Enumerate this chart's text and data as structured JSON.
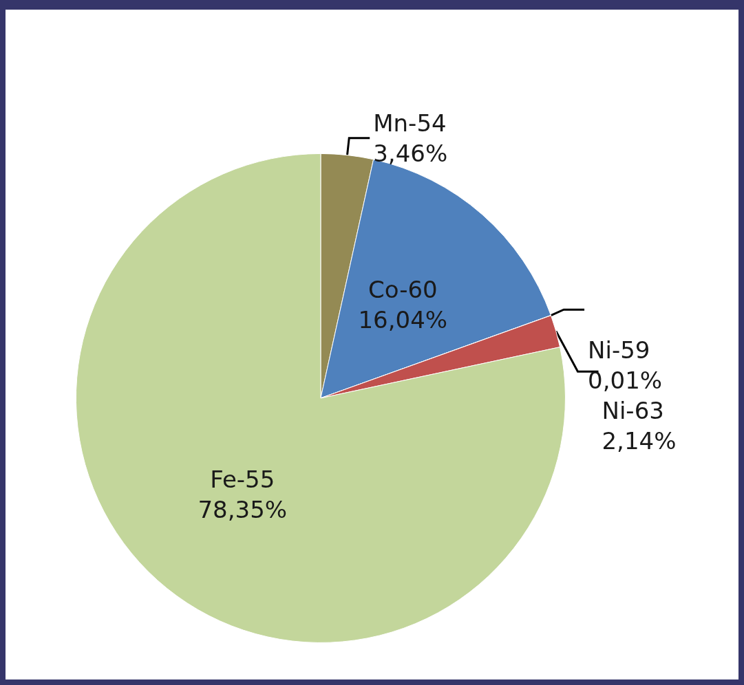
{
  "chart_data": {
    "type": "pie",
    "categories": [
      "Mn-54",
      "Co-60",
      "Ni-59",
      "Ni-63",
      "Fe-55"
    ],
    "values": [
      3.46,
      16.04,
      0.01,
      2.14,
      78.35
    ],
    "colors": [
      "#948a54",
      "#4f81bd",
      "#8064a2",
      "#c0504d",
      "#c3d69b"
    ],
    "value_labels": [
      "3,46%",
      "16,04%",
      "0,01%",
      "2,14%",
      "78,35%"
    ]
  }
}
